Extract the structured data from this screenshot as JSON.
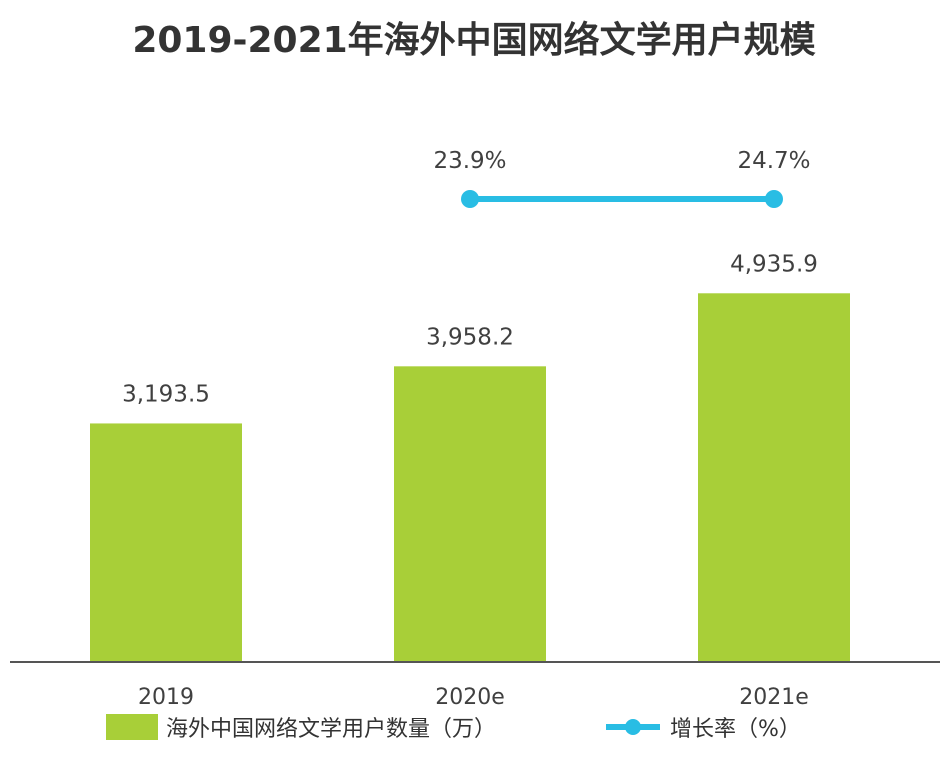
{
  "chart_data": {
    "type": "bar",
    "title": "2019-2021年海外中国网络文学用户规模",
    "categories": [
      "2019",
      "2020e",
      "2021e"
    ],
    "series": [
      {
        "name": "海外中国网络文学用户数量（万）",
        "type": "bar",
        "values": [
          3193.5,
          3958.2,
          4935.9
        ],
        "labels": [
          "3,193.5",
          "3,958.2",
          "4,935.9"
        ],
        "color": "#a8cf38"
      },
      {
        "name": "增长率（%）",
        "type": "line",
        "values": [
          null,
          23.9,
          24.7
        ],
        "labels": [
          "",
          "23.9%",
          "24.7%"
        ],
        "color": "#29bde4"
      }
    ],
    "ylim": [
      0,
      5500
    ],
    "grid": false,
    "legend_position": "bottom"
  }
}
